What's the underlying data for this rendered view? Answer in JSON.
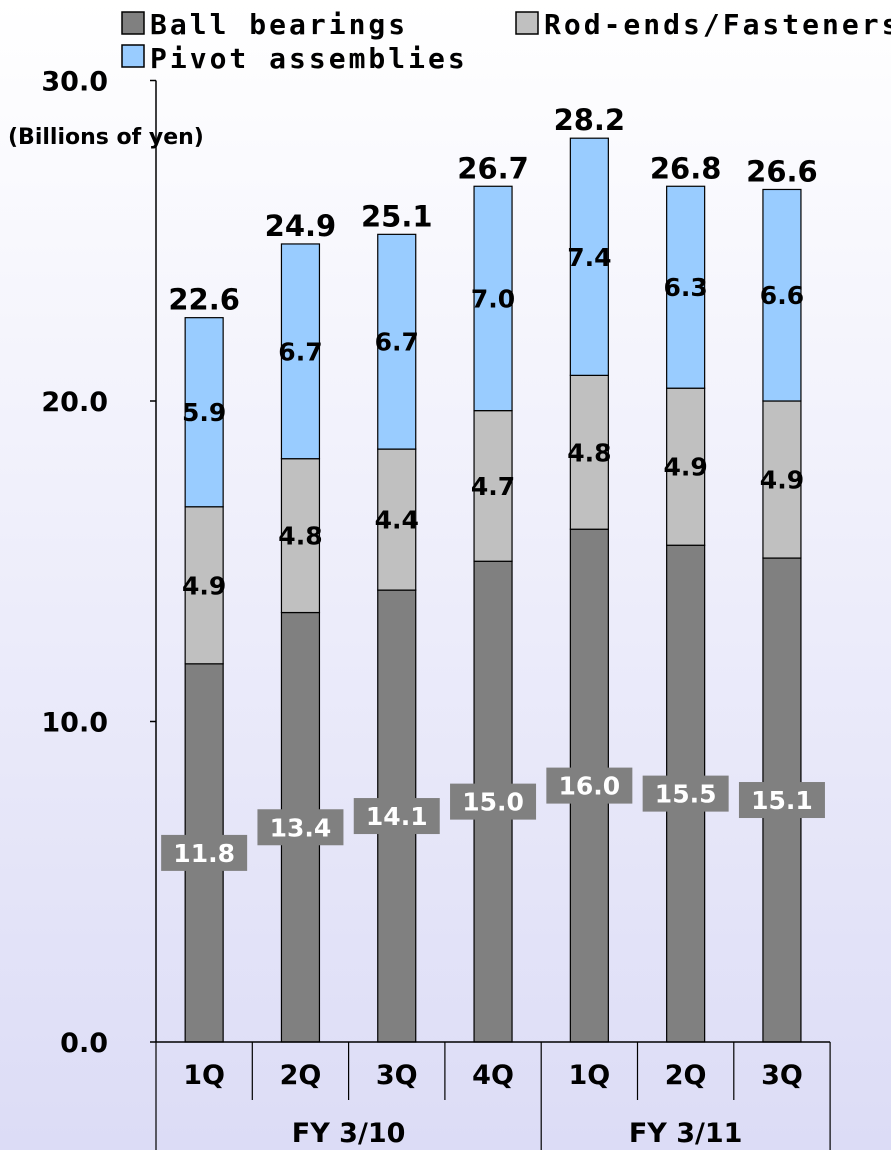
{
  "chart_data": {
    "type": "bar",
    "stacked": true,
    "ylabel": "(Billions of yen)",
    "ylim": [
      0,
      30
    ],
    "yticks": [
      "0.0",
      "10.0",
      "20.0",
      "30.0"
    ],
    "categories": [
      "1Q",
      "2Q",
      "3Q",
      "4Q",
      "1Q",
      "2Q",
      "3Q"
    ],
    "groups": [
      {
        "label": "FY 3/10",
        "count": 4
      },
      {
        "label": "FY 3/11",
        "count": 3
      }
    ],
    "series": [
      {
        "name": "Ball bearings",
        "color": "#808080",
        "values": [
          11.8,
          13.4,
          14.1,
          15.0,
          16.0,
          15.5,
          15.1
        ]
      },
      {
        "name": "Rod-ends/Fasteners",
        "color": "#c0c0c0",
        "values": [
          4.9,
          4.8,
          4.4,
          4.7,
          4.8,
          4.9,
          4.9
        ]
      },
      {
        "name": "Pivot assemblies",
        "color": "#99ccff",
        "values": [
          5.9,
          6.7,
          6.7,
          7.0,
          7.4,
          6.3,
          6.6
        ]
      }
    ],
    "totals": [
      "22.6",
      "24.9",
      "25.1",
      "26.7",
      "28.2",
      "26.8",
      "26.6"
    ],
    "legend_position": "top",
    "grid": false
  }
}
